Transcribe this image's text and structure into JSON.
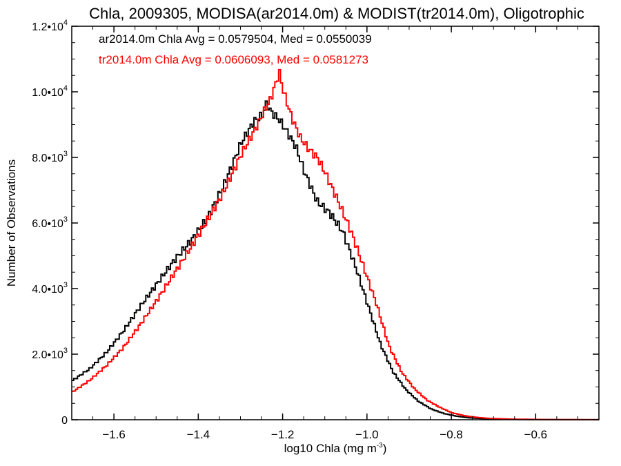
{
  "chart_data": {
    "type": "line",
    "title": "Chla, 2009305, MODISA(ar2014.0m) & MODIST(tr2014.0m), Oligotrophic",
    "xlabel": "log10 Chla (mg m",
    "xlabel_sup": "-3",
    "xlabel_end": ")",
    "ylabel": "Number of Observations",
    "xlim": [
      -1.7,
      -0.45
    ],
    "ylim": [
      0,
      12000
    ],
    "x_ticks": [
      {
        "value": -1.6,
        "label": "−1.6"
      },
      {
        "value": -1.4,
        "label": "−1.4"
      },
      {
        "value": -1.2,
        "label": "−1.2"
      },
      {
        "value": -1.0,
        "label": "−1.0"
      },
      {
        "value": -0.8,
        "label": "−0.8"
      },
      {
        "value": -0.6,
        "label": "−0.6"
      }
    ],
    "y_ticks": [
      {
        "value": 0,
        "base": "0",
        "exp": ""
      },
      {
        "value": 2000,
        "base": "2.0•10",
        "exp": "3"
      },
      {
        "value": 4000,
        "base": "4.0•10",
        "exp": "3"
      },
      {
        "value": 6000,
        "base": "6.0•10",
        "exp": "3"
      },
      {
        "value": 8000,
        "base": "8.0•10",
        "exp": "3"
      },
      {
        "value": 10000,
        "base": "1.0•10",
        "exp": "4"
      },
      {
        "value": 12000,
        "base": "1.2•10",
        "exp": "4"
      }
    ],
    "grid": false,
    "legend": "top-left",
    "annotations": [
      {
        "text": "ar2014.0m Chla Avg = 0.0579504, Med = 0.0550039",
        "color": "#000000"
      },
      {
        "text": "tr2014.0m Chla Avg = 0.0606093, Med = 0.0581273",
        "color": "#ff0000"
      }
    ],
    "series": [
      {
        "color": "#000000",
        "x": [
          -1.7,
          -1.66,
          -1.62,
          -1.58,
          -1.54,
          -1.5,
          -1.46,
          -1.42,
          -1.38,
          -1.34,
          -1.3,
          -1.27,
          -1.25,
          -1.24,
          -1.23,
          -1.21,
          -1.19,
          -1.17,
          -1.15,
          -1.12,
          -1.09,
          -1.06,
          -1.03,
          -1.0,
          -0.97,
          -0.94,
          -0.91,
          -0.88,
          -0.85,
          -0.82,
          -0.79,
          -0.76,
          -0.73,
          -0.7,
          -0.65,
          -0.6,
          -0.55,
          -0.5,
          -0.45
        ],
        "y": [
          1200,
          1550,
          2050,
          2700,
          3450,
          4150,
          4850,
          5450,
          6150,
          7200,
          8450,
          9100,
          9300,
          9650,
          9400,
          9150,
          8750,
          8300,
          7550,
          6650,
          6300,
          5750,
          4700,
          3500,
          2300,
          1450,
          920,
          560,
          330,
          190,
          110,
          60,
          35,
          20,
          10,
          5,
          3,
          2,
          1
        ]
      },
      {
        "color": "#ff0000",
        "x": [
          -1.7,
          -1.66,
          -1.62,
          -1.58,
          -1.54,
          -1.5,
          -1.46,
          -1.42,
          -1.38,
          -1.34,
          -1.3,
          -1.27,
          -1.25,
          -1.23,
          -1.22,
          -1.21,
          -1.2,
          -1.18,
          -1.16,
          -1.14,
          -1.12,
          -1.1,
          -1.07,
          -1.04,
          -1.01,
          -0.98,
          -0.95,
          -0.92,
          -0.89,
          -0.86,
          -0.83,
          -0.8,
          -0.77,
          -0.74,
          -0.71,
          -0.66,
          -0.6,
          -0.55,
          -0.5,
          -0.45
        ],
        "y": [
          850,
          1200,
          1650,
          2200,
          2900,
          3650,
          4450,
          5250,
          6100,
          7000,
          8100,
          8800,
          9300,
          9800,
          10200,
          10600,
          10000,
          9200,
          8600,
          8250,
          8000,
          7500,
          6650,
          5750,
          4650,
          3550,
          2250,
          1450,
          950,
          600,
          380,
          210,
          120,
          70,
          40,
          20,
          10,
          5,
          3,
          1
        ]
      }
    ]
  }
}
